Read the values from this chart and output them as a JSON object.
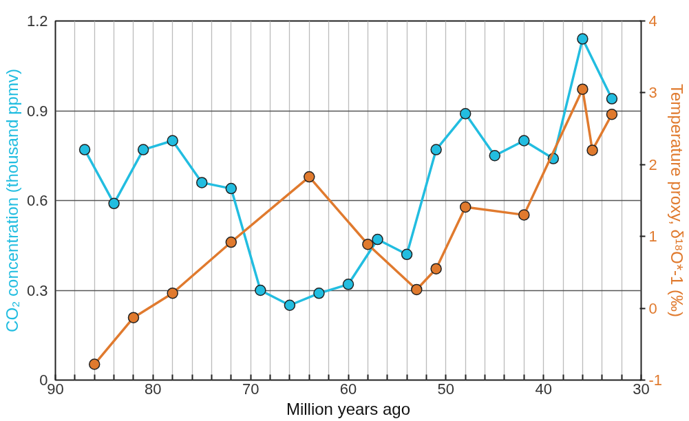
{
  "chart_data": {
    "type": "line",
    "xlabel": "Million years ago",
    "ylabel": "CO₂ concentration (thousand ppmv)",
    "y2label": "Temperature proxy, δ¹⁸O*-1 (‰)",
    "xlim": [
      90,
      30
    ],
    "xticks": [
      90,
      {
        "value": 88,
        "label": null
      },
      {
        "value": 86,
        "label": null
      },
      {
        "value": 84,
        "label": null
      },
      {
        "value": 82,
        "label": null
      },
      80,
      {
        "value": 78,
        "label": null
      },
      {
        "value": 76,
        "label": null
      },
      {
        "value": 74,
        "label": null
      },
      {
        "value": 72,
        "label": null
      },
      70,
      {
        "value": 68,
        "label": null
      },
      {
        "value": 66,
        "label": null
      },
      {
        "value": 64,
        "label": null
      },
      {
        "value": 62,
        "label": null
      },
      60,
      {
        "value": 58,
        "label": null
      },
      {
        "value": 56,
        "label": null
      },
      {
        "value": 54,
        "label": null
      },
      {
        "value": 52,
        "label": null
      },
      50,
      {
        "value": 48,
        "label": null
      },
      {
        "value": 46,
        "label": null
      },
      {
        "value": 44,
        "label": null
      },
      {
        "value": 42,
        "label": null
      },
      40,
      {
        "value": 38,
        "label": null
      },
      {
        "value": 36,
        "label": null
      },
      {
        "value": 34,
        "label": null
      },
      {
        "value": 32,
        "label": null
      },
      30
    ],
    "ylim": [
      0,
      1.2
    ],
    "yticks": [
      0,
      0.3,
      0.6,
      0.9,
      1.2
    ],
    "y2lim": [
      -1,
      4
    ],
    "y2ticks": [
      -1,
      0,
      1,
      2,
      3,
      4
    ],
    "grid": true,
    "marker": "circle",
    "line_style": "solid",
    "series": [
      {
        "color": "#22bde0",
        "x": [
          87,
          84,
          81,
          78,
          75,
          72,
          69,
          66,
          63,
          60,
          57,
          54,
          51,
          48,
          45,
          42,
          39,
          36,
          33
        ],
        "values": [
          0.77,
          0.59,
          0.77,
          0.8,
          0.66,
          0.64,
          0.3,
          0.25,
          0.29,
          0.32,
          0.47,
          0.42,
          0.77,
          0.89,
          0.75,
          0.8,
          0.74,
          1.14,
          0.94
        ]
      },
      {
        "color": "#e07a2e",
        "axis": "y2",
        "x": [
          86,
          82,
          78,
          72,
          64,
          58,
          53,
          51,
          48,
          42,
          36,
          35,
          33
        ],
        "values": [
          -0.78,
          -0.13,
          0.21,
          0.92,
          1.83,
          0.89,
          0.26,
          0.55,
          1.41,
          1.3,
          3.05,
          2.2,
          2.7
        ]
      }
    ]
  }
}
